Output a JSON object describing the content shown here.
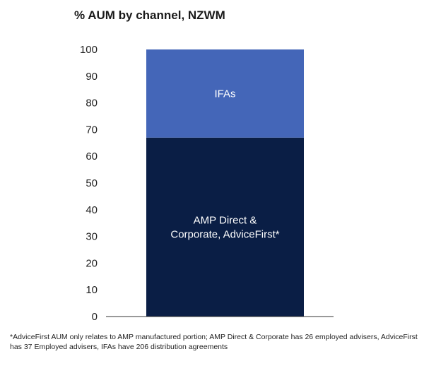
{
  "chart_data": {
    "type": "bar",
    "stacked": true,
    "title": "% AUM by channel, NZWM",
    "categories": [
      ""
    ],
    "series": [
      {
        "name": "AMP Direct & Corporate, AdviceFirst*",
        "label_lines": [
          "AMP Direct &",
          "Corporate, AdviceFirst*"
        ],
        "values": [
          67
        ],
        "color": "#0a1e45"
      },
      {
        "name": "IFAs",
        "label_lines": [
          "IFAs"
        ],
        "values": [
          33
        ],
        "color": "#4466b8"
      }
    ],
    "ylim": [
      0,
      100
    ],
    "yticks": [
      0,
      10,
      20,
      30,
      40,
      50,
      60,
      70,
      80,
      90,
      100
    ],
    "xlabel": "",
    "ylabel": "",
    "grid": false
  },
  "footnote": "*AdviceFirst AUM only relates to AMP manufactured portion; AMP Direct & Corporate has 26 employed advisers, AdviceFirst has 37 Employed advisers, IFAs have 206 distribution agreements"
}
